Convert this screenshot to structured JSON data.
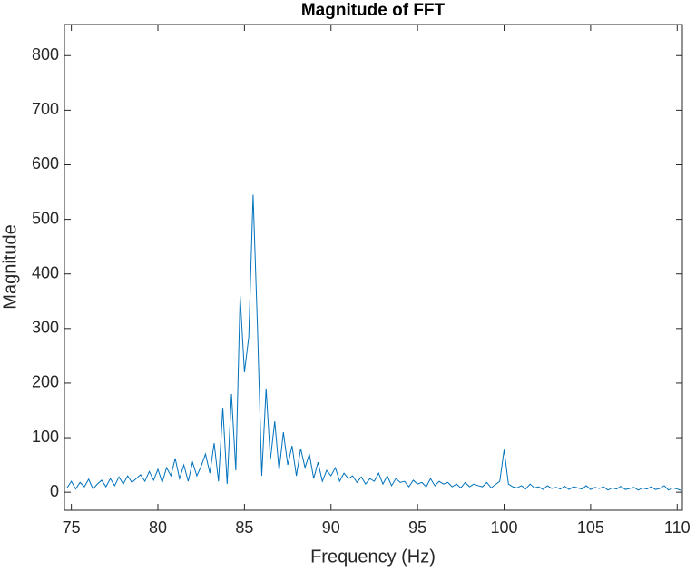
{
  "chart_data": {
    "type": "line",
    "title": "Magnitude of FFT",
    "x_label": "Frequency (Hz)",
    "y_label": "Magnitude",
    "x": [
      74.75,
      75,
      75.25,
      75.5,
      75.75,
      76,
      76.25,
      76.5,
      76.75,
      77,
      77.25,
      77.5,
      77.75,
      78,
      78.25,
      78.5,
      78.75,
      79,
      79.25,
      79.5,
      79.75,
      80,
      80.25,
      80.5,
      80.75,
      81,
      81.25,
      81.5,
      81.75,
      82,
      82.25,
      82.5,
      82.75,
      83,
      83.25,
      83.5,
      83.75,
      84,
      84.25,
      84.5,
      84.75,
      85,
      85.25,
      85.5,
      85.75,
      86,
      86.25,
      86.5,
      86.75,
      87,
      87.25,
      87.5,
      87.75,
      88,
      88.25,
      88.5,
      88.75,
      89,
      89.25,
      89.5,
      89.75,
      90,
      90.25,
      90.5,
      90.75,
      91,
      91.25,
      91.5,
      91.75,
      92,
      92.25,
      92.5,
      92.75,
      93,
      93.25,
      93.5,
      93.75,
      94,
      94.25,
      94.5,
      94.75,
      95,
      95.25,
      95.5,
      95.75,
      96,
      96.25,
      96.5,
      96.75,
      97,
      97.25,
      97.5,
      97.75,
      98,
      98.25,
      98.5,
      98.75,
      99,
      99.25,
      99.5,
      99.75,
      100,
      100.25,
      100.5,
      100.75,
      101,
      101.25,
      101.5,
      101.75,
      102,
      102.25,
      102.5,
      102.75,
      103,
      103.25,
      103.5,
      103.75,
      104,
      104.25,
      104.5,
      104.75,
      105,
      105.25,
      105.5,
      105.75,
      106,
      106.25,
      106.5,
      106.75,
      107,
      107.25,
      107.5,
      107.75,
      108,
      108.25,
      108.5,
      108.75,
      109,
      109.25,
      109.5,
      109.75,
      110,
      110.25
    ],
    "series": [
      {
        "name": "Magnitude",
        "color": "#0072bd",
        "values": [
          8,
          20,
          6,
          18,
          10,
          24,
          6,
          15,
          22,
          10,
          25,
          12,
          28,
          15,
          30,
          18,
          25,
          32,
          20,
          38,
          22,
          42,
          18,
          45,
          30,
          62,
          25,
          50,
          20,
          55,
          30,
          48,
          70,
          35,
          90,
          20,
          155,
          15,
          180,
          40,
          360,
          220,
          285,
          545,
          305,
          30,
          190,
          60,
          130,
          40,
          110,
          50,
          85,
          30,
          80,
          45,
          70,
          25,
          55,
          20,
          40,
          30,
          45,
          20,
          35,
          25,
          30,
          18,
          28,
          15,
          25,
          20,
          35,
          15,
          30,
          12,
          25,
          18,
          20,
          10,
          22,
          15,
          18,
          10,
          25,
          12,
          20,
          15,
          18,
          10,
          15,
          8,
          18,
          10,
          15,
          12,
          10,
          18,
          8,
          14,
          20,
          78,
          15,
          10,
          8,
          12,
          6,
          15,
          8,
          10,
          5,
          12,
          7,
          9,
          6,
          11,
          5,
          10,
          8,
          6,
          12,
          5,
          9,
          7,
          10,
          4,
          8,
          6,
          11,
          5,
          7,
          9,
          4,
          8,
          6,
          10,
          5,
          7,
          12,
          4,
          8,
          6,
          3
        ]
      }
    ],
    "xlim": [
      74.6,
      110.3
    ],
    "ylim": [
      -33,
      857
    ],
    "xticks": [
      75,
      80,
      85,
      90,
      95,
      100,
      105,
      110
    ],
    "yticks": [
      0,
      100,
      200,
      300,
      400,
      500,
      600,
      700,
      800
    ]
  }
}
